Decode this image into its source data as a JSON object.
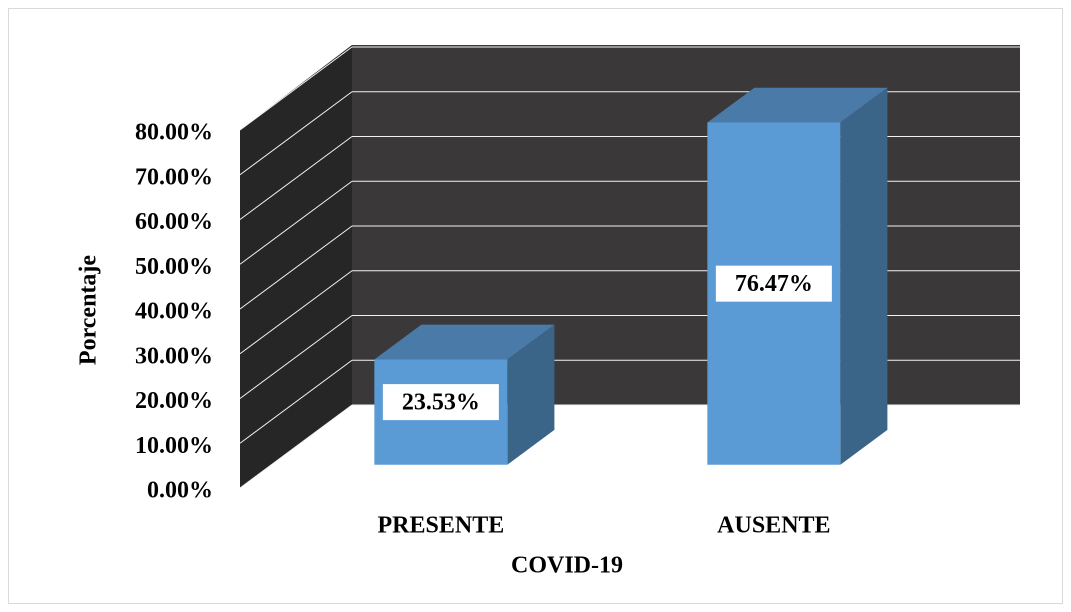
{
  "chart_data": {
    "type": "bar3d",
    "categories": [
      "PRESENTE",
      "AUSENTE"
    ],
    "values": [
      23.53,
      76.47
    ],
    "value_labels": [
      "23.53%",
      "76.47%"
    ],
    "color": "#5b9bd5",
    "x_label": "COVID-19",
    "y_label": "Porcentaje",
    "ylim": [
      0,
      80
    ],
    "yticks": [
      {
        "value": 0,
        "label": "0.00%"
      },
      {
        "value": 10,
        "label": "10.00%"
      },
      {
        "value": 20,
        "label": "20.00%"
      },
      {
        "value": 30,
        "label": "30.00%"
      },
      {
        "value": 40,
        "label": "40.00%"
      },
      {
        "value": 50,
        "label": "50.00%"
      },
      {
        "value": 60,
        "label": "60.00%"
      },
      {
        "value": 70,
        "label": "70.00%"
      },
      {
        "value": 80,
        "label": "80.00%"
      }
    ],
    "grid": true
  }
}
